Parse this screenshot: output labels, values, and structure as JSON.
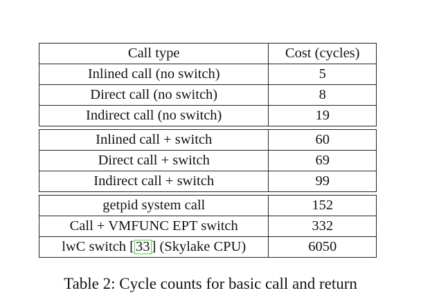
{
  "table": {
    "headers": [
      "Call type",
      "Cost (cycles)"
    ],
    "groups": [
      [
        {
          "type": "Inlined call (no switch)",
          "cost": "5"
        },
        {
          "type": "Direct call (no switch)",
          "cost": "8"
        },
        {
          "type": "Indirect call (no switch)",
          "cost": "19"
        }
      ],
      [
        {
          "type": "Inlined call + switch",
          "cost": "60"
        },
        {
          "type": "Direct call + switch",
          "cost": "69"
        },
        {
          "type": "Indirect call + switch",
          "cost": "99"
        }
      ],
      [
        {
          "type": "getpid system call",
          "cost": "152"
        },
        {
          "type": "Call + VMFUNC EPT switch",
          "cost": "332"
        },
        {
          "type_prefix": "lwC switch [",
          "citation": "33",
          "type_suffix": "] (Skylake CPU)",
          "cost": "6050"
        }
      ]
    ]
  },
  "caption": "Table 2: Cycle counts for basic call and return",
  "colors": {
    "citation_box": "#3ddc3d",
    "rule": "#222222"
  }
}
